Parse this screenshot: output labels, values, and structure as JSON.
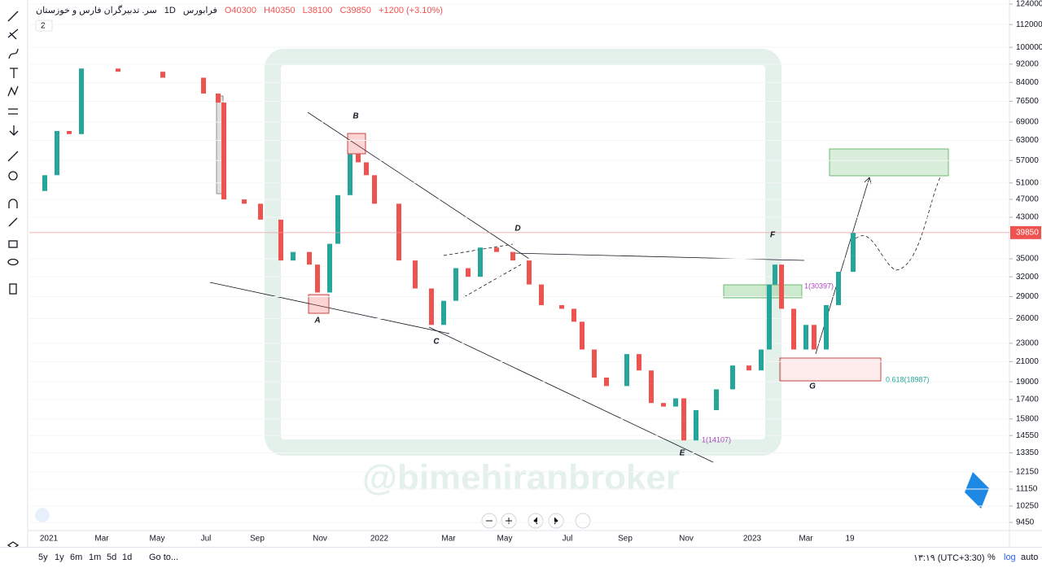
{
  "header": {
    "symbol": "سر. تدبیرگران فارس و خوزستان",
    "interval": "1D",
    "exchange": "فرابورس",
    "open": "O40300",
    "high": "H40350",
    "low": "L38100",
    "close": "C39850",
    "change": "+1200 (+3.10%)",
    "studies": "2"
  },
  "chart_data": {
    "type": "candlestick",
    "log_scale": true,
    "closes": [
      49000,
      53000,
      66000,
      65000,
      90000,
      88600,
      86000,
      79500,
      76000,
      47000,
      46000,
      42500,
      34700,
      36200,
      34000,
      29600,
      37700,
      48000,
      58800,
      56500,
      53000,
      46000,
      34700,
      30200,
      25200,
      28400,
      33400,
      32000,
      37000,
      36200,
      34700,
      30800,
      27800,
      27300,
      25600,
      22300,
      19400,
      18600,
      21800,
      20100,
      17100,
      16800,
      17500,
      14200,
      16500,
      18300,
      20600,
      20100,
      22300,
      30800,
      34000,
      27300,
      22300,
      25200,
      22300,
      27800,
      32800,
      39850
    ],
    "up_color": "#26a69a",
    "down_color": "#ef5350",
    "ylim": [
      9075,
      126500
    ],
    "yticks": [
      124000,
      112000,
      100000,
      92000,
      84000,
      76500,
      69000,
      63000,
      57000,
      51000,
      47000,
      43000,
      35000,
      32000,
      29000,
      26000,
      23000,
      21000,
      19000,
      17400,
      15800,
      14550,
      13350,
      12150,
      11150,
      10250,
      9450
    ],
    "last_price": 39850,
    "x_labels": [
      "2021",
      "Mar",
      "May",
      "Jul",
      "Sep",
      "Nov",
      "2022",
      "Mar",
      "May",
      "Jul",
      "Sep",
      "Nov",
      "2023",
      "Mar",
      "19"
    ],
    "wave_labels": [
      "B",
      "A",
      "C",
      "D",
      "E",
      "F",
      "G"
    ],
    "fib_labels": [
      "1(30397)",
      "1(14107)",
      "0.618(18987)"
    ]
  },
  "watermark": "@bimehiranbroker",
  "bottom_bar": {
    "ranges": [
      "5y",
      "1y",
      "6m",
      "1m",
      "5d",
      "1d"
    ],
    "goto": "Go to...",
    "clock": "۱۳:۱۹ (UTC+3:30)",
    "percent": "%",
    "log": "log",
    "auto": "auto"
  }
}
